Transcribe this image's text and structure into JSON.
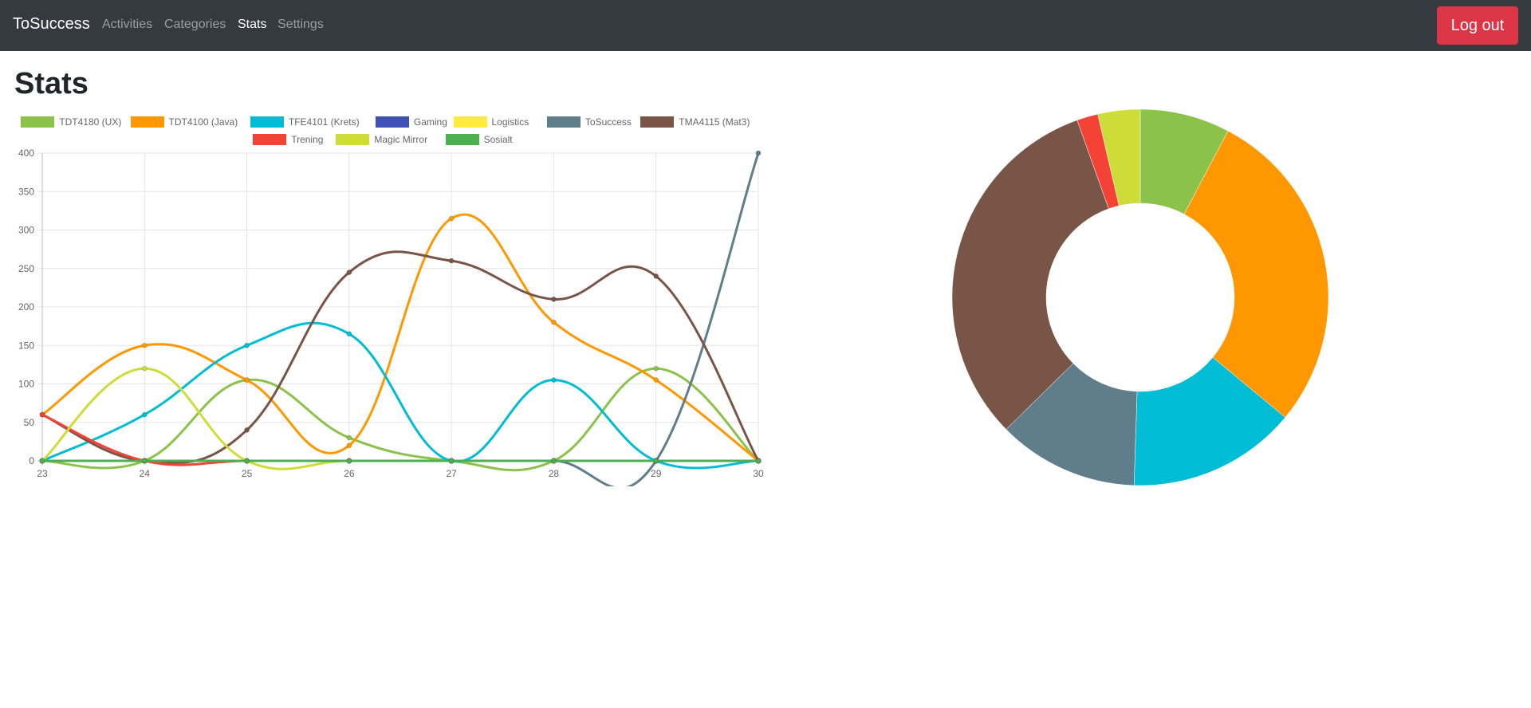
{
  "navbar": {
    "brand": "ToSuccess",
    "links": [
      {
        "label": "Activities",
        "active": false
      },
      {
        "label": "Categories",
        "active": false
      },
      {
        "label": "Stats",
        "active": true
      },
      {
        "label": "Settings",
        "active": false
      }
    ],
    "logout_label": "Log out"
  },
  "page": {
    "title": "Stats"
  },
  "colors": {
    "navbar_bg": "#343a40",
    "logout_bg": "#dc3545",
    "grid": "#e5e5e5",
    "axis_text": "#666666"
  },
  "chart_data": [
    {
      "type": "line",
      "smooth": true,
      "legend_position": "top",
      "grid": true,
      "categories": [
        "23",
        "24",
        "25",
        "26",
        "27",
        "28",
        "29",
        "30"
      ],
      "ylim": [
        0,
        400
      ],
      "yticks": [
        0,
        50,
        100,
        150,
        200,
        250,
        300,
        350,
        400
      ],
      "series": [
        {
          "name": "TDT4180 (UX)",
          "color": "#8bc34a",
          "values": [
            0,
            0,
            105,
            30,
            0,
            0,
            120,
            0
          ]
        },
        {
          "name": "TDT4100 (Java)",
          "color": "#ff9800",
          "values": [
            60,
            150,
            105,
            20,
            315,
            180,
            105,
            0
          ]
        },
        {
          "name": "TFE4101 (Krets)",
          "color": "#00bcd4",
          "values": [
            0,
            60,
            150,
            165,
            0,
            105,
            0,
            0
          ]
        },
        {
          "name": "Gaming",
          "color": "#3f51b5",
          "values": [
            0,
            0,
            0,
            0,
            0,
            0,
            0,
            0
          ]
        },
        {
          "name": "Logistics",
          "color": "#ffeb3b",
          "values": [
            0,
            0,
            0,
            0,
            0,
            0,
            0,
            0
          ]
        },
        {
          "name": "ToSuccess",
          "color": "#607d8b",
          "values": [
            0,
            0,
            0,
            0,
            0,
            0,
            0,
            400
          ]
        },
        {
          "name": "TMA4115 (Mat3)",
          "color": "#795548",
          "values": [
            60,
            0,
            40,
            245,
            260,
            210,
            240,
            0
          ]
        },
        {
          "name": "Trening",
          "color": "#f44336",
          "values": [
            60,
            0,
            0,
            0,
            0,
            0,
            0,
            0
          ]
        },
        {
          "name": "Magic Mirror",
          "color": "#cddc39",
          "values": [
            0,
            120,
            0,
            0,
            0,
            0,
            0,
            0
          ]
        },
        {
          "name": "Sosialt",
          "color": "#4caf50",
          "values": [
            0,
            0,
            0,
            0,
            0,
            0,
            0,
            0
          ]
        }
      ]
    },
    {
      "type": "pie",
      "doughnut": true,
      "start_angle": -90,
      "slices": [
        {
          "label": "TDT4180 (UX)",
          "color": "#8bc34a",
          "value": 255
        },
        {
          "label": "TDT4100 (Java)",
          "color": "#ff9800",
          "value": 935
        },
        {
          "label": "TFE4101 (Krets)",
          "color": "#00bcd4",
          "value": 480
        },
        {
          "label": "ToSuccess",
          "color": "#607d8b",
          "value": 400
        },
        {
          "label": "TMA4115 (Mat3)",
          "color": "#795548",
          "value": 1055
        },
        {
          "label": "Trening",
          "color": "#f44336",
          "value": 60
        },
        {
          "label": "Magic Mirror",
          "color": "#cddc39",
          "value": 120
        }
      ]
    }
  ]
}
